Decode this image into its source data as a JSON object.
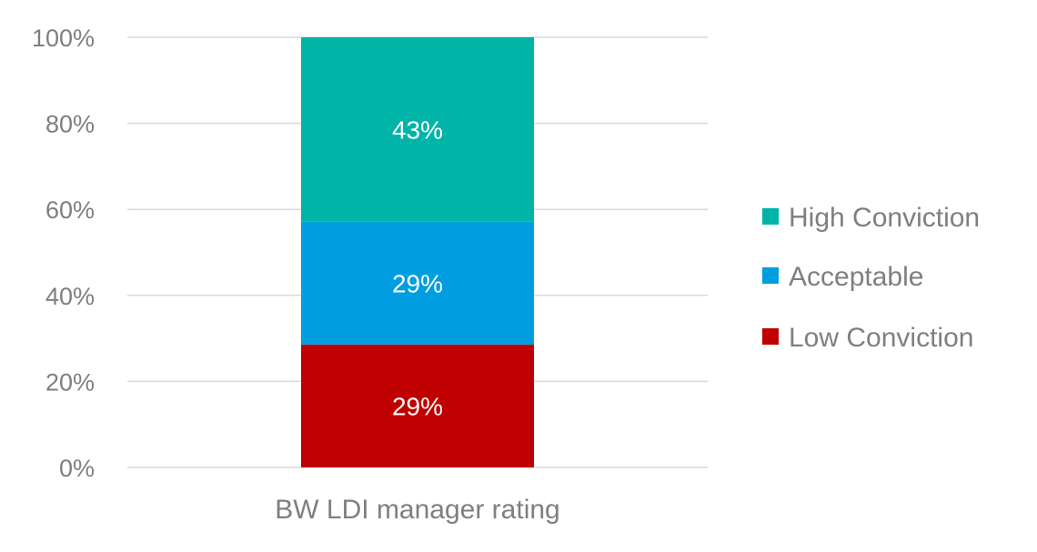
{
  "chart_data": {
    "type": "bar",
    "stacked": true,
    "categories": [
      "BW LDI manager rating"
    ],
    "series": [
      {
        "name": "Low Conviction",
        "values": [
          0.2857
        ],
        "label": "29%",
        "color": "#c00000"
      },
      {
        "name": "Acceptable",
        "values": [
          0.2857
        ],
        "label": "29%",
        "color": "#009ee0"
      },
      {
        "name": "High Conviction",
        "values": [
          0.4286
        ],
        "label": "43%",
        "color": "#00b4a8"
      }
    ],
    "ylim": [
      0,
      1
    ],
    "yticks": [
      0,
      0.2,
      0.4,
      0.6,
      0.8,
      1.0
    ],
    "ytick_labels": [
      "0%",
      "20%",
      "40%",
      "60%",
      "80%",
      "100%"
    ],
    "grid": true,
    "legend": {
      "position": "right",
      "order": [
        "High Conviction",
        "Acceptable",
        "Low Conviction"
      ]
    },
    "title": "",
    "xlabel": "",
    "ylabel": ""
  }
}
